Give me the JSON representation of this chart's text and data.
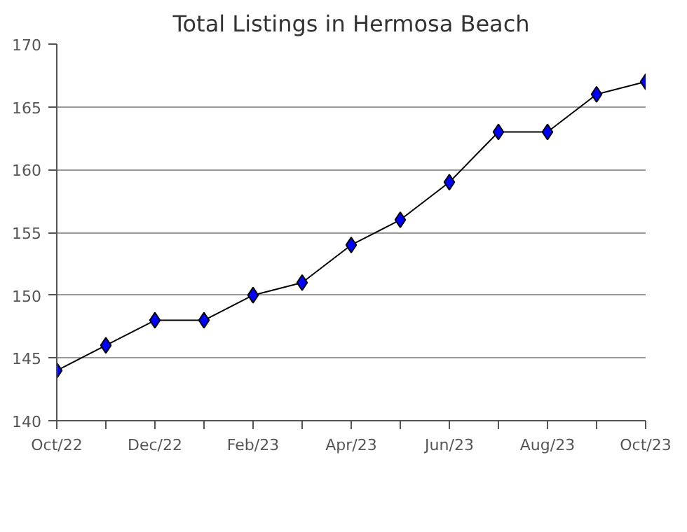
{
  "chart_data": {
    "type": "line",
    "title": "Total Listings in Hermosa Beach",
    "categories": [
      "Oct/22",
      null,
      "Dec/22",
      null,
      "Feb/23",
      null,
      "Apr/23",
      null,
      "Jun/23",
      null,
      "Aug/23",
      null,
      "Oct/23"
    ],
    "series": [
      {
        "color": "#0000ff",
        "values": [
          144,
          146,
          148,
          148,
          150,
          151,
          154,
          156,
          159,
          163,
          163,
          166,
          167
        ]
      }
    ],
    "ylim": [
      140,
      170
    ],
    "yticks": [
      140,
      145,
      150,
      155,
      160,
      165,
      170
    ],
    "grid": "y",
    "marker": "diamond",
    "line_style": "solid"
  }
}
